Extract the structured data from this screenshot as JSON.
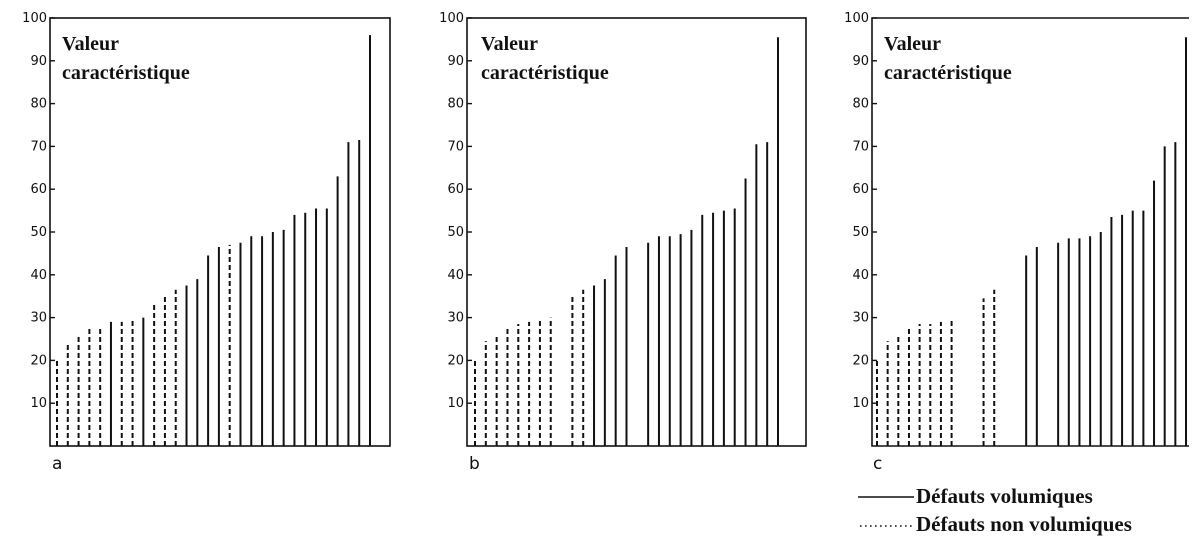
{
  "chart_data": [
    {
      "type": "bar",
      "panel_label": "a",
      "ylabel_lines": [
        "Valeur",
        "caractéristique"
      ],
      "ylim": [
        0,
        100
      ],
      "yticks": [
        "10",
        "20",
        "30",
        "40",
        "50",
        "60",
        "70",
        "80",
        "90",
        "100"
      ],
      "bars": [
        {
          "value": 20,
          "kind": "non"
        },
        {
          "value": 24,
          "kind": "non"
        },
        {
          "value": 26,
          "kind": "non"
        },
        {
          "value": 27.5,
          "kind": "non"
        },
        {
          "value": 28,
          "kind": "non"
        },
        {
          "value": 29,
          "kind": "vol"
        },
        {
          "value": 29,
          "kind": "non"
        },
        {
          "value": 29.5,
          "kind": "non"
        },
        {
          "value": 30,
          "kind": "vol"
        },
        {
          "value": 33.5,
          "kind": "non"
        },
        {
          "value": 35,
          "kind": "non"
        },
        {
          "value": 36.5,
          "kind": "non"
        },
        {
          "value": 37.5,
          "kind": "vol"
        },
        {
          "value": 39,
          "kind": "vol"
        },
        {
          "value": 44.5,
          "kind": "vol"
        },
        {
          "value": 46.5,
          "kind": "vol"
        },
        {
          "value": 47,
          "kind": "non"
        },
        {
          "value": 47.5,
          "kind": "vol"
        },
        {
          "value": 49,
          "kind": "vol"
        },
        {
          "value": 49,
          "kind": "vol"
        },
        {
          "value": 50,
          "kind": "vol"
        },
        {
          "value": 50.5,
          "kind": "vol"
        },
        {
          "value": 54,
          "kind": "vol"
        },
        {
          "value": 54.5,
          "kind": "vol"
        },
        {
          "value": 55.5,
          "kind": "vol"
        },
        {
          "value": 55.5,
          "kind": "vol"
        },
        {
          "value": 63,
          "kind": "vol"
        },
        {
          "value": 71,
          "kind": "vol"
        },
        {
          "value": 71.5,
          "kind": "vol"
        },
        {
          "value": 96,
          "kind": "vol"
        }
      ]
    },
    {
      "type": "bar",
      "panel_label": "b",
      "ylabel_lines": [
        "Valeur",
        "caractéristique"
      ],
      "ylim": [
        0,
        100
      ],
      "yticks": [
        "10",
        "20",
        "30",
        "40",
        "50",
        "60",
        "70",
        "80",
        "90",
        "100"
      ],
      "bars": [
        {
          "value": 20,
          "kind": "non"
        },
        {
          "value": 24.5,
          "kind": "non"
        },
        {
          "value": 26,
          "kind": "non"
        },
        {
          "value": 27.5,
          "kind": "non"
        },
        {
          "value": 28.5,
          "kind": "non"
        },
        {
          "value": 29,
          "kind": "non"
        },
        {
          "value": 29.5,
          "kind": "non"
        },
        {
          "value": 30,
          "kind": "non"
        },
        {
          "value": null,
          "kind": "gap"
        },
        {
          "value": 35,
          "kind": "non"
        },
        {
          "value": 36.5,
          "kind": "non"
        },
        {
          "value": 37.5,
          "kind": "vol"
        },
        {
          "value": 39,
          "kind": "vol"
        },
        {
          "value": 44.5,
          "kind": "vol"
        },
        {
          "value": 46.5,
          "kind": "vol"
        },
        {
          "value": null,
          "kind": "gap"
        },
        {
          "value": 47.5,
          "kind": "vol"
        },
        {
          "value": 49,
          "kind": "vol"
        },
        {
          "value": 49,
          "kind": "vol"
        },
        {
          "value": 49.5,
          "kind": "vol"
        },
        {
          "value": 50.5,
          "kind": "vol"
        },
        {
          "value": 54,
          "kind": "vol"
        },
        {
          "value": 54.5,
          "kind": "vol"
        },
        {
          "value": 55,
          "kind": "vol"
        },
        {
          "value": 55.5,
          "kind": "vol"
        },
        {
          "value": 62.5,
          "kind": "vol"
        },
        {
          "value": 70.5,
          "kind": "vol"
        },
        {
          "value": 71,
          "kind": "vol"
        },
        {
          "value": 95.5,
          "kind": "vol"
        }
      ]
    },
    {
      "type": "bar",
      "panel_label": "c",
      "ylabel_lines": [
        "Valeur",
        "caractéristique"
      ],
      "ylim": [
        0,
        100
      ],
      "yticks": [
        "10",
        "20",
        "30",
        "40",
        "50",
        "60",
        "70",
        "80",
        "90",
        "100"
      ],
      "bars": [
        {
          "value": 20,
          "kind": "non"
        },
        {
          "value": 24.5,
          "kind": "non"
        },
        {
          "value": 26,
          "kind": "non"
        },
        {
          "value": 27.5,
          "kind": "non"
        },
        {
          "value": 28.5,
          "kind": "non"
        },
        {
          "value": 28.5,
          "kind": "non"
        },
        {
          "value": 29,
          "kind": "non"
        },
        {
          "value": 29.5,
          "kind": "non"
        },
        {
          "value": null,
          "kind": "gap"
        },
        {
          "value": null,
          "kind": "gap"
        },
        {
          "value": 34.5,
          "kind": "non"
        },
        {
          "value": 36.5,
          "kind": "non"
        },
        {
          "value": null,
          "kind": "gap"
        },
        {
          "value": null,
          "kind": "gap"
        },
        {
          "value": 44.5,
          "kind": "vol"
        },
        {
          "value": 46.5,
          "kind": "vol"
        },
        {
          "value": null,
          "kind": "gap"
        },
        {
          "value": 47.5,
          "kind": "vol"
        },
        {
          "value": 48.5,
          "kind": "vol"
        },
        {
          "value": 48.5,
          "kind": "vol"
        },
        {
          "value": 49,
          "kind": "vol"
        },
        {
          "value": 50,
          "kind": "vol"
        },
        {
          "value": 53.5,
          "kind": "vol"
        },
        {
          "value": 54,
          "kind": "vol"
        },
        {
          "value": 55,
          "kind": "vol"
        },
        {
          "value": 55,
          "kind": "vol"
        },
        {
          "value": 62,
          "kind": "vol"
        },
        {
          "value": 70,
          "kind": "vol"
        },
        {
          "value": 71,
          "kind": "vol"
        },
        {
          "value": 95.5,
          "kind": "vol"
        }
      ]
    }
  ],
  "legend": {
    "volumetric": "Défauts volumiques",
    "non_volumetric": "Défauts non volumiques"
  },
  "colors": {
    "ink": "#111111",
    "background": "#ffffff"
  }
}
